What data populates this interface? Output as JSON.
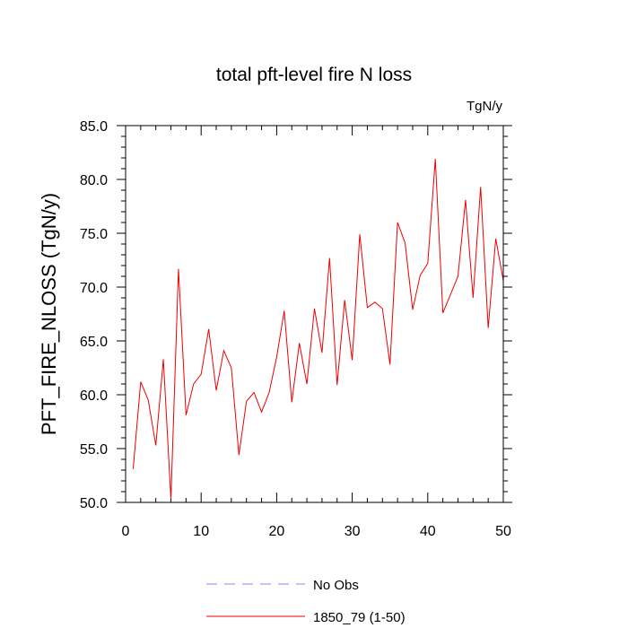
{
  "chart_data": {
    "type": "line",
    "title": "total pft-level fire N loss",
    "units": "TgN/y",
    "ylabel": "PFT_FIRE_NLOSS  (TgN/y)",
    "xlabel": "",
    "xlim": [
      0,
      50
    ],
    "ylim": [
      50,
      85
    ],
    "x_ticks": [
      0,
      10,
      20,
      30,
      40,
      50
    ],
    "x_tick_labels": [
      "0",
      "10",
      "20",
      "30",
      "40",
      "50"
    ],
    "y_ticks": [
      50,
      55,
      60,
      65,
      70,
      75,
      80,
      85
    ],
    "y_tick_labels": [
      "50.0",
      "55.0",
      "60.0",
      "65.0",
      "70.0",
      "75.0",
      "80.0",
      "85.0"
    ],
    "grid": false,
    "legend_position": "bottom-center",
    "series": [
      {
        "name": "No Obs",
        "color": "#8888ee",
        "dash": "dashed",
        "x": [],
        "values": []
      },
      {
        "name": "1850_79 (1-50)",
        "color": "#ee0000",
        "dash": "solid",
        "x": [
          1,
          2,
          3,
          4,
          5,
          6,
          7,
          8,
          9,
          10,
          11,
          12,
          13,
          14,
          15,
          16,
          17,
          18,
          19,
          20,
          21,
          22,
          23,
          24,
          25,
          26,
          27,
          28,
          29,
          30,
          31,
          32,
          33,
          34,
          35,
          36,
          37,
          38,
          39,
          40,
          41,
          42,
          43,
          44,
          45,
          46,
          47,
          48,
          49,
          50
        ],
        "values": [
          53.1,
          61.2,
          59.5,
          55.3,
          63.3,
          50.3,
          71.7,
          58.1,
          61.0,
          61.9,
          66.1,
          60.4,
          64.1,
          62.5,
          54.4,
          59.4,
          60.2,
          58.4,
          60.2,
          63.5,
          67.8,
          59.3,
          64.8,
          61.0,
          68.0,
          63.9,
          72.7,
          60.9,
          68.8,
          63.2,
          74.9,
          68.1,
          68.6,
          68.0,
          62.8,
          76.0,
          74.1,
          67.9,
          71.1,
          72.2,
          81.9,
          67.6,
          69.3,
          71.0,
          78.1,
          69.0,
          79.3,
          66.2,
          74.5,
          70.6
        ]
      }
    ]
  }
}
